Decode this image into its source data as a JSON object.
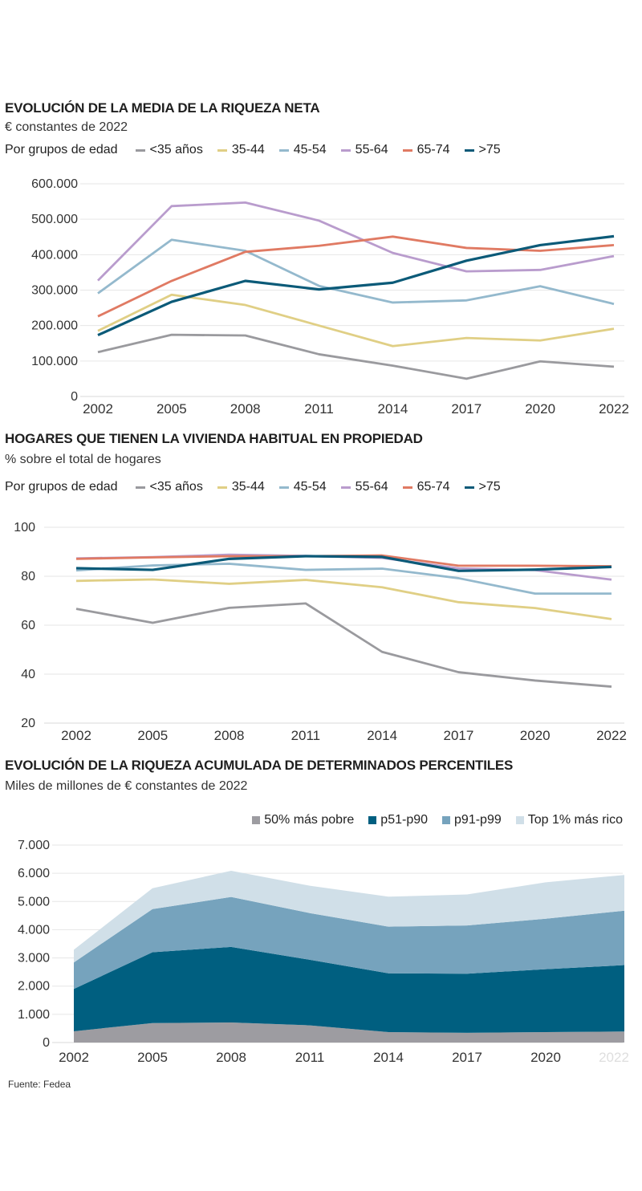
{
  "chart_data": [
    {
      "type": "line",
      "title": "EVOLUCIÓN DE LA MEDIA DE LA RIQUEZA NETA",
      "subtitle": "€ constantes de 2022",
      "legend_title": "Por grupos de edad",
      "legend_placement": "top",
      "categories": [
        "2002",
        "2005",
        "2008",
        "2011",
        "2014",
        "2017",
        "2020",
        "2022"
      ],
      "ylim": [
        0,
        600000
      ],
      "yticks": [
        0,
        100000,
        200000,
        300000,
        400000,
        500000,
        600000
      ],
      "ytick_labels": [
        "0",
        "100.000",
        "200.000",
        "300.000",
        "400.000",
        "500.000",
        "600.000"
      ],
      "grid": true,
      "series": [
        {
          "name": "<35 años",
          "color": "#9a9a9e",
          "values": [
            125000,
            174000,
            172000,
            119000,
            87000,
            50000,
            99000,
            84000
          ]
        },
        {
          "name": "35-44",
          "color": "#e0cf85",
          "values": [
            185000,
            287000,
            258000,
            200000,
            142000,
            165000,
            158000,
            191000
          ]
        },
        {
          "name": "45-54",
          "color": "#94b9cd",
          "values": [
            291000,
            442000,
            411000,
            312000,
            265000,
            271000,
            311000,
            261000
          ]
        },
        {
          "name": "55-64",
          "color": "#b99ccd",
          "values": [
            327000,
            537000,
            547000,
            496000,
            405000,
            353000,
            357000,
            396000
          ]
        },
        {
          "name": "65-74",
          "color": "#e07a63",
          "values": [
            226000,
            326000,
            408000,
            425000,
            451000,
            419000,
            411000,
            427000
          ]
        },
        {
          "name": ">75",
          "color": "#0b5a78",
          "values": [
            173000,
            267000,
            326000,
            302000,
            321000,
            383000,
            427000,
            452000
          ]
        }
      ]
    },
    {
      "type": "line",
      "title": "HOGARES QUE TIENEN LA VIVIENDA HABITUAL EN PROPIEDAD",
      "subtitle": "% sobre el total de hogares",
      "legend_title": "Por grupos de edad",
      "legend_placement": "top",
      "categories": [
        "2002",
        "2005",
        "2008",
        "2011",
        "2014",
        "2017",
        "2020",
        "2022"
      ],
      "ylim": [
        20,
        100
      ],
      "yticks": [
        20,
        40,
        60,
        80,
        100
      ],
      "ytick_labels": [
        "20",
        "40",
        "60",
        "80",
        "100"
      ],
      "grid": true,
      "series": [
        {
          "name": "<35 años",
          "color": "#9a9a9e",
          "values": [
            66.7,
            61.0,
            67.1,
            68.9,
            49.1,
            40.8,
            37.4,
            34.9
          ]
        },
        {
          "name": "35-44",
          "color": "#e0cf85",
          "values": [
            78.1,
            78.7,
            76.9,
            78.5,
            75.5,
            69.4,
            67.0,
            62.5
          ]
        },
        {
          "name": "45-54",
          "color": "#94b9cd",
          "values": [
            82.4,
            84.4,
            85.1,
            82.6,
            83.1,
            79.2,
            72.9,
            72.9
          ]
        },
        {
          "name": "55-64",
          "color": "#b99ccd",
          "values": [
            87.3,
            87.8,
            88.8,
            88.3,
            87.5,
            83.2,
            82.5,
            78.6
          ]
        },
        {
          "name": "65-74",
          "color": "#e07a63",
          "values": [
            87.1,
            87.7,
            88.2,
            88.2,
            88.5,
            84.3,
            84.3,
            84.1
          ]
        },
        {
          "name": ">75",
          "color": "#0b5a78",
          "values": [
            83.3,
            82.6,
            87.1,
            88.2,
            87.9,
            82.2,
            82.7,
            83.8
          ]
        }
      ]
    },
    {
      "type": "area",
      "stacked": true,
      "title": "EVOLUCIÓN DE LA RIQUEZA ACUMULADA DE DETERMINADOS PERCENTILES",
      "subtitle": "Miles de millones de € constantes de 2022",
      "legend_placement": "top-right",
      "categories": [
        "2002",
        "2005",
        "2008",
        "2011",
        "2014",
        "2017",
        "2020",
        "2022"
      ],
      "ylim": [
        0,
        7000
      ],
      "yticks": [
        0,
        1000,
        2000,
        3000,
        4000,
        5000,
        6000,
        7000
      ],
      "ytick_labels": [
        "0",
        "1.000",
        "2.000",
        "3.000",
        "4.000",
        "5.000",
        "6.000",
        "7.000"
      ],
      "grid": true,
      "series": [
        {
          "name": "50% más pobre",
          "color": "#9d9ca1",
          "values": [
            400,
            690,
            710,
            610,
            370,
            345,
            370,
            390
          ]
        },
        {
          "name": "p51-p90",
          "color": "#005f80",
          "values": [
            1500,
            2510,
            2680,
            2325,
            2085,
            2095,
            2230,
            2355
          ]
        },
        {
          "name": "p91-p99",
          "color": "#76a3bd",
          "values": [
            940,
            1530,
            1770,
            1655,
            1655,
            1710,
            1790,
            1930
          ]
        },
        {
          "name": "Top 1% más rico",
          "color": "#d0dfe8",
          "values": [
            450,
            740,
            930,
            970,
            1060,
            1100,
            1290,
            1265
          ]
        }
      ]
    }
  ],
  "source": "Fuente: Fedea"
}
